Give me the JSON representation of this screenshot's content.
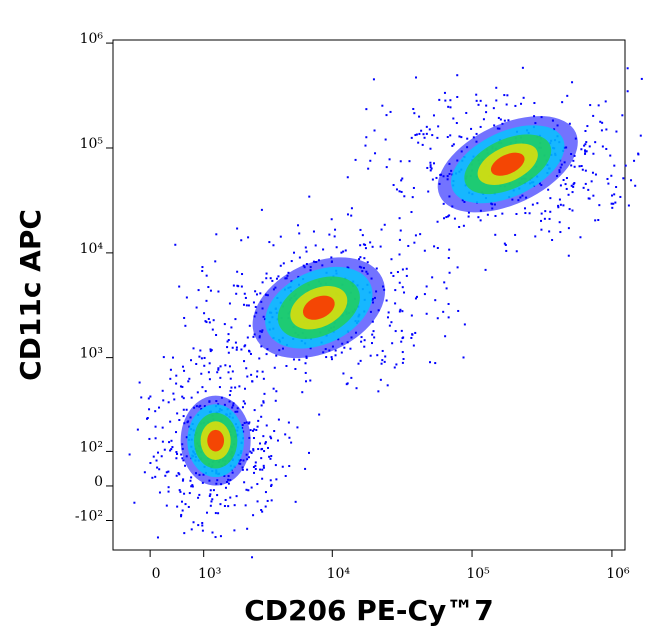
{
  "chart_data": {
    "type": "density",
    "x_label": "CD206 PE-Cy™7",
    "y_label": "CD11c APC",
    "scale": "biexponential",
    "xlim": [
      -650,
      1240000
    ],
    "ylim": [
      -230,
      1070000
    ],
    "xticks": [
      0,
      {
        "value": 1000,
        "label": "10³"
      },
      {
        "value": 10000,
        "label": "10⁴"
      },
      {
        "value": 100000,
        "label": "10⁵"
      },
      {
        "value": 1000000,
        "label": "10⁶"
      }
    ],
    "yticks": [
      {
        "value": -100,
        "label": "-10²"
      },
      0,
      {
        "value": 100,
        "label": "10²"
      },
      {
        "value": 1000,
        "label": "10³"
      },
      {
        "value": 10000,
        "label": "10⁴"
      },
      {
        "value": 100000,
        "label": "10⁵"
      },
      {
        "value": 1000000,
        "label": "10⁶"
      }
    ],
    "colors": [
      "#0000ff",
      "#00c8ff",
      "#20d050",
      "#f0e000",
      "#ff2000"
    ],
    "populations": [
      {
        "x": 1300,
        "y": 140
      },
      {
        "x": 8000,
        "y": 3000
      },
      {
        "x": 180000,
        "y": 70000
      }
    ]
  }
}
